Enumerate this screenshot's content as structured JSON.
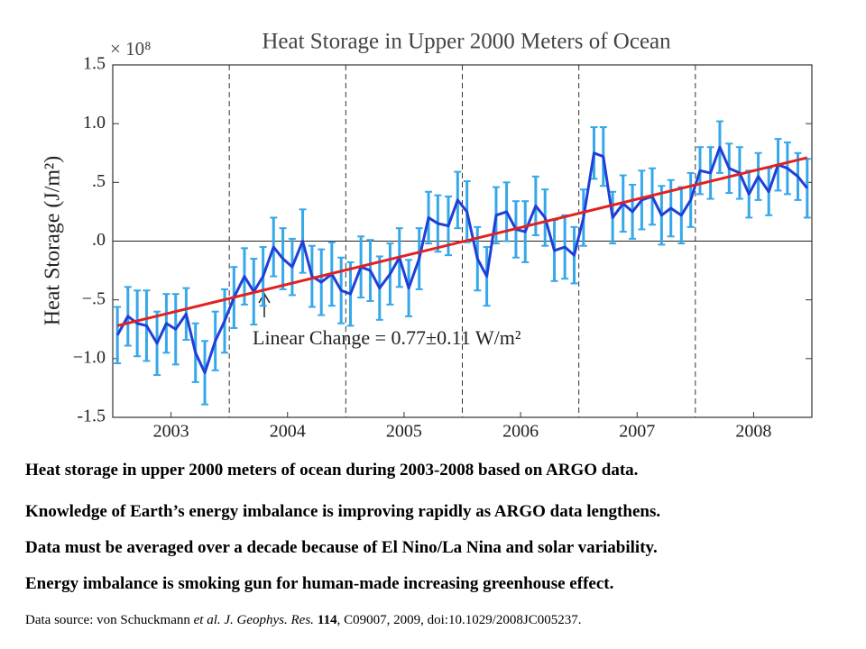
{
  "chart_data": {
    "type": "line",
    "title": "Heat Storage in Upper 2000 Meters of Ocean",
    "y_scale_label": "× 10⁸",
    "y_label": "Heat Storage (J/m²)",
    "annotation": "Linear Change = 0.77±0.11 W/m²",
    "x": [
      2003.04,
      2003.13,
      2003.21,
      2003.29,
      2003.38,
      2003.46,
      2003.54,
      2003.63,
      2003.71,
      2003.79,
      2003.88,
      2003.96,
      2004.04,
      2004.13,
      2004.21,
      2004.29,
      2004.38,
      2004.46,
      2004.54,
      2004.63,
      2004.71,
      2004.79,
      2004.88,
      2004.96,
      2005.04,
      2005.13,
      2005.21,
      2005.29,
      2005.38,
      2005.46,
      2005.54,
      2005.63,
      2005.71,
      2005.79,
      2005.88,
      2005.96,
      2006.04,
      2006.13,
      2006.21,
      2006.29,
      2006.38,
      2006.46,
      2006.54,
      2006.63,
      2006.71,
      2006.79,
      2006.88,
      2006.96,
      2007.04,
      2007.13,
      2007.21,
      2007.29,
      2007.38,
      2007.46,
      2007.54,
      2007.63,
      2007.71,
      2007.79,
      2007.88,
      2007.96,
      2008.04,
      2008.13,
      2008.21,
      2008.29,
      2008.38,
      2008.46,
      2008.54,
      2008.63,
      2008.71,
      2008.79,
      2008.88,
      2008.96
    ],
    "values": [
      -0.8,
      -0.64,
      -0.7,
      -0.72,
      -0.87,
      -0.7,
      -0.75,
      -0.62,
      -0.95,
      -1.12,
      -0.85,
      -0.68,
      -0.48,
      -0.3,
      -0.43,
      -0.3,
      -0.05,
      -0.15,
      -0.22,
      0.0,
      -0.3,
      -0.35,
      -0.28,
      -0.42,
      -0.45,
      -0.22,
      -0.25,
      -0.4,
      -0.28,
      -0.14,
      -0.4,
      -0.15,
      0.2,
      0.15,
      0.13,
      0.35,
      0.25,
      -0.15,
      -0.3,
      0.22,
      0.25,
      0.1,
      0.08,
      0.3,
      0.2,
      -0.08,
      -0.05,
      -0.12,
      0.2,
      0.75,
      0.72,
      0.2,
      0.32,
      0.25,
      0.35,
      0.38,
      0.22,
      0.28,
      0.22,
      0.35,
      0.6,
      0.58,
      0.8,
      0.62,
      0.58,
      0.4,
      0.55,
      0.42,
      0.65,
      0.62,
      0.55,
      0.45
    ],
    "errors": [
      0.24,
      0.25,
      0.28,
      0.3,
      0.27,
      0.25,
      0.3,
      0.22,
      0.25,
      0.27,
      0.25,
      0.27,
      0.26,
      0.24,
      0.28,
      0.25,
      0.25,
      0.26,
      0.24,
      0.27,
      0.26,
      0.28,
      0.27,
      0.28,
      0.27,
      0.26,
      0.26,
      0.27,
      0.26,
      0.25,
      0.24,
      0.26,
      0.22,
      0.24,
      0.25,
      0.24,
      0.26,
      0.27,
      0.25,
      0.24,
      0.25,
      0.24,
      0.26,
      0.25,
      0.24,
      0.26,
      0.27,
      0.24,
      0.24,
      0.22,
      0.25,
      0.22,
      0.24,
      0.23,
      0.25,
      0.24,
      0.25,
      0.24,
      0.24,
      0.23,
      0.2,
      0.22,
      0.22,
      0.21,
      0.22,
      0.2,
      0.2,
      0.2,
      0.22,
      0.22,
      0.2,
      0.25
    ],
    "color": "#1f3fd6",
    "error_color": "#35a8ea",
    "trend": {
      "x": [
        2003.04,
        2008.96
      ],
      "values": [
        -0.72,
        0.71
      ],
      "color": "#e02222"
    },
    "xlim": [
      2003,
      2009
    ],
    "xticks": [
      {
        "value": 2003.5,
        "label": "2003"
      },
      {
        "value": 2004.5,
        "label": "2004"
      },
      {
        "value": 2005.5,
        "label": "2005"
      },
      {
        "value": 2006.5,
        "label": "2006"
      },
      {
        "value": 2007.5,
        "label": "2007"
      },
      {
        "value": 2008.5,
        "label": "2008"
      }
    ],
    "vlines": [
      2004,
      2005,
      2006,
      2007,
      2008
    ],
    "hline": 0,
    "ylim": [
      -1.5,
      1.5
    ],
    "yticks": [
      1.5,
      {
        "value": 1.0,
        "label": "1.0"
      },
      {
        "value": 0.5,
        "label": ".5"
      },
      {
        "value": 0,
        "label": ".0"
      },
      {
        "value": -0.5,
        "label": "−.5"
      },
      {
        "value": -1.0,
        "label": "−1.0"
      },
      -1.5
    ]
  },
  "caption": [
    "Heat storage in upper 2000 meters of ocean during 2003-2008 based on ARGO data.",
    "Knowledge of Earth’s energy imbalance is improving rapidly as ARGO data lengthens.",
    "Data must be averaged over a decade because of El Nino/La Nina and solar variability.",
    "Energy imbalance is smoking gun for human-made increasing greenhouse effect."
  ],
  "source": [
    "Data source: von Schuckmann",
    "et al. J. Geophys. Res.",
    "114",
    ", C09007, 2009, doi:10.1029/2008JC005237."
  ]
}
